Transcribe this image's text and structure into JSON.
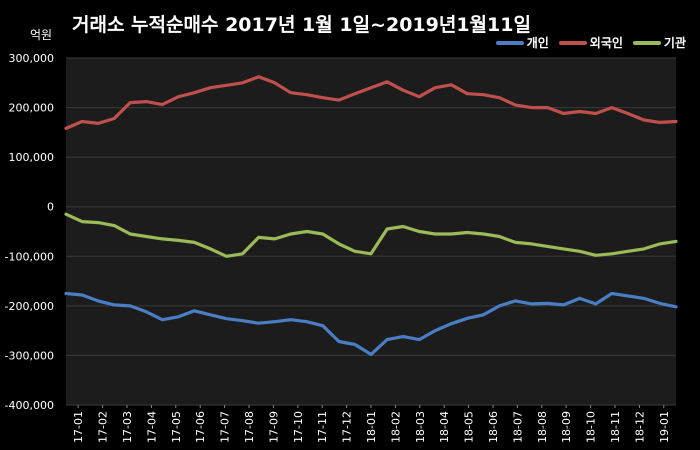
{
  "colors": {
    "background": "#000000",
    "plot_area": "#1c1c1c",
    "gridline": "#3a3a3a",
    "개인": "#4a7ec4",
    "외국인": "#c0504d",
    "기관": "#9bbb59"
  },
  "chart_data": {
    "type": "line",
    "title": "거래소 누적순매수 2017년 1월 1일~2019년1월11일",
    "unit_label": "억원",
    "xlabel": "",
    "ylabel": "",
    "ylim": [
      -400000,
      300000
    ],
    "yticks": [
      "300,000",
      "200,000",
      "100,000",
      "0",
      "-100,000",
      "-200,000",
      "-300,000",
      "-400,000"
    ],
    "ytick_values": [
      300000,
      200000,
      100000,
      0,
      -100000,
      -200000,
      -300000,
      -400000
    ],
    "grid": true,
    "legend_position": "top-right",
    "x_ticks": [
      "17-01",
      "17-02",
      "17-03",
      "17-04",
      "17-05",
      "17-06",
      "17-07",
      "17-08",
      "17-09",
      "17-10",
      "17-11",
      "17-12",
      "18-01",
      "18-02",
      "18-03",
      "18-04",
      "18-05",
      "18-06",
      "18-07",
      "18-08",
      "18-09",
      "18-10",
      "18-11",
      "18-12",
      "19-01"
    ],
    "series": [
      {
        "name": "개인",
        "color": "#4a7ec4",
        "values": [
          -175000,
          -178000,
          -190000,
          -198000,
          -200000,
          -212000,
          -228000,
          -222000,
          -210000,
          -218000,
          -226000,
          -230000,
          -235000,
          -232000,
          -228000,
          -232000,
          -240000,
          -272000,
          -278000,
          -298000,
          -268000,
          -262000,
          -268000,
          -250000,
          -236000,
          -225000,
          -218000,
          -200000,
          -190000,
          -196000,
          -195000,
          -198000,
          -185000,
          -196000,
          -175000,
          -180000,
          -185000,
          -195000,
          -202000
        ]
      },
      {
        "name": "외국인",
        "color": "#c0504d",
        "values": [
          158000,
          172000,
          168000,
          178000,
          210000,
          212000,
          206000,
          222000,
          230000,
          240000,
          245000,
          250000,
          262000,
          250000,
          230000,
          226000,
          220000,
          215000,
          228000,
          240000,
          252000,
          235000,
          222000,
          240000,
          246000,
          228000,
          226000,
          220000,
          205000,
          200000,
          200000,
          188000,
          192000,
          188000,
          200000,
          188000,
          175000,
          170000,
          172000
        ]
      },
      {
        "name": "기관",
        "color": "#9bbb59",
        "values": [
          -15000,
          -30000,
          -32000,
          -38000,
          -55000,
          -60000,
          -65000,
          -68000,
          -72000,
          -85000,
          -100000,
          -95000,
          -62000,
          -65000,
          -55000,
          -50000,
          -55000,
          -75000,
          -90000,
          -95000,
          -45000,
          -40000,
          -50000,
          -55000,
          -55000,
          -52000,
          -55000,
          -60000,
          -72000,
          -75000,
          -80000,
          -85000,
          -90000,
          -98000,
          -95000,
          -90000,
          -85000,
          -75000,
          -70000
        ]
      }
    ]
  }
}
